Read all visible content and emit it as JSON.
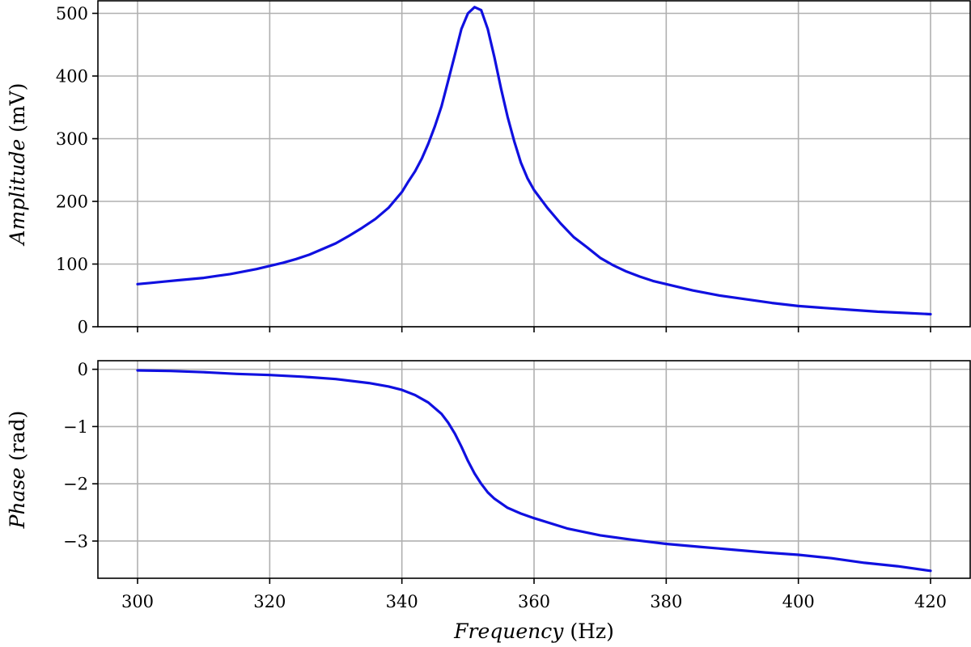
{
  "chart_data": [
    {
      "type": "line",
      "panel": "top",
      "xlabel_italic": "",
      "ylabel_italic": "Amplitude",
      "ylabel_rest": "(mV)",
      "xlim": [
        294,
        426
      ],
      "ylim": [
        0,
        520
      ],
      "xticks": [
        300,
        320,
        340,
        360,
        380,
        400,
        420
      ],
      "yticks": [
        0,
        100,
        200,
        300,
        400,
        500
      ],
      "ytick_labels": [
        "0",
        "100",
        "200",
        "300",
        "400",
        "500"
      ],
      "grid": true,
      "series": [
        {
          "color": "#1010e0",
          "x": [
            300,
            302,
            304,
            306,
            308,
            310,
            312,
            314,
            316,
            318,
            320,
            322,
            324,
            326,
            328,
            330,
            332,
            334,
            336,
            338,
            340,
            341,
            342,
            343,
            344,
            345,
            346,
            347,
            348,
            349,
            350,
            351,
            352,
            353,
            354,
            355,
            356,
            357,
            358,
            359,
            360,
            362,
            364,
            366,
            368,
            370,
            372,
            374,
            376,
            378,
            380,
            384,
            388,
            392,
            396,
            400,
            404,
            408,
            412,
            416,
            420
          ],
          "y": [
            68,
            70,
            72,
            74,
            76,
            78,
            81,
            84,
            88,
            92,
            97,
            102,
            108,
            115,
            124,
            133,
            145,
            158,
            172,
            190,
            215,
            232,
            248,
            268,
            292,
            320,
            352,
            392,
            433,
            475,
            500,
            510,
            505,
            475,
            430,
            380,
            335,
            296,
            262,
            237,
            218,
            190,
            165,
            143,
            127,
            110,
            98,
            88,
            80,
            73,
            68,
            58,
            50,
            44,
            38,
            33,
            30,
            27,
            24,
            22,
            20
          ]
        }
      ]
    },
    {
      "type": "line",
      "panel": "bottom",
      "xlabel_italic": "Frequency",
      "xlabel_rest": "(Hz)",
      "ylabel_italic": "Phase",
      "ylabel_rest": "(rad)",
      "xlim": [
        294,
        426
      ],
      "ylim": [
        -3.65,
        0.15
      ],
      "xticks": [
        300,
        320,
        340,
        360,
        380,
        400,
        420
      ],
      "xtick_labels": [
        "300",
        "320",
        "340",
        "360",
        "380",
        "400",
        "420"
      ],
      "yticks": [
        0,
        -1,
        -2,
        -3
      ],
      "ytick_labels": [
        "0",
        "−1",
        "−2",
        "−3"
      ],
      "grid": true,
      "series": [
        {
          "color": "#1010e0",
          "x": [
            300,
            305,
            310,
            315,
            320,
            325,
            330,
            335,
            338,
            340,
            342,
            344,
            346,
            347,
            348,
            349,
            350,
            351,
            352,
            353,
            354,
            356,
            358,
            360,
            365,
            370,
            375,
            380,
            385,
            390,
            395,
            400,
            405,
            410,
            415,
            420
          ],
          "y": [
            -0.02,
            -0.03,
            -0.05,
            -0.08,
            -0.1,
            -0.13,
            -0.17,
            -0.24,
            -0.3,
            -0.36,
            -0.45,
            -0.58,
            -0.78,
            -0.93,
            -1.12,
            -1.35,
            -1.6,
            -1.82,
            -2.0,
            -2.15,
            -2.26,
            -2.42,
            -2.52,
            -2.6,
            -2.78,
            -2.9,
            -2.98,
            -3.05,
            -3.1,
            -3.15,
            -3.2,
            -3.24,
            -3.3,
            -3.38,
            -3.44,
            -3.52
          ]
        }
      ]
    }
  ]
}
